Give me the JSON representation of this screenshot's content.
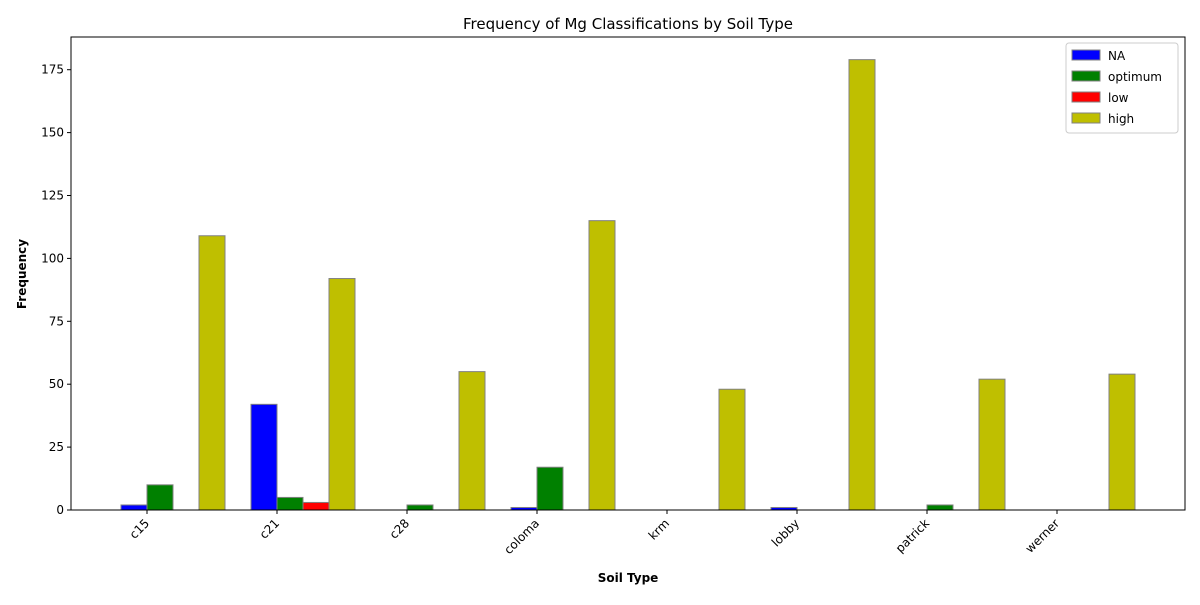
{
  "chart_data": {
    "type": "bar",
    "title": "Frequency of Mg Classifications by Soil Type",
    "xlabel": "Soil Type",
    "ylabel": "Frequency",
    "categories": [
      "c15",
      "c21",
      "c28",
      "coloma",
      "krm",
      "lobby",
      "patrick",
      "werner"
    ],
    "series": [
      {
        "name": "NA",
        "color": "#0000ff",
        "values": [
          2,
          42,
          0,
          1,
          0,
          1,
          0,
          0
        ]
      },
      {
        "name": "optimum",
        "color": "#008000",
        "values": [
          10,
          5,
          2,
          17,
          0,
          0,
          2,
          0
        ]
      },
      {
        "name": "low",
        "color": "#ff0000",
        "values": [
          0,
          3,
          0,
          0,
          0,
          0,
          0,
          0
        ]
      },
      {
        "name": "high",
        "color": "#bfbf00",
        "values": [
          109,
          92,
          55,
          115,
          48,
          179,
          52,
          54
        ]
      }
    ],
    "ylim": [
      0,
      188
    ],
    "yticks": [
      0,
      25,
      50,
      75,
      100,
      125,
      150,
      175
    ],
    "grid": false,
    "legend_position": "top-right",
    "bar_edge_color": "#808080"
  }
}
